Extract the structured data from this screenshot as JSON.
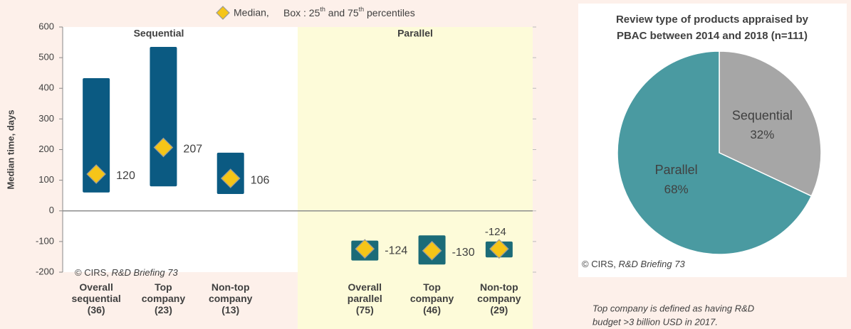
{
  "chart_data": [
    {
      "type": "box",
      "legend": {
        "median": "Median,",
        "box": [
          "Box : 25",
          "th",
          " and 75",
          "th",
          " percentiles"
        ],
        "median_color": "#f5c518"
      },
      "ylabel": "Median time, days",
      "groups": [
        {
          "label": "Sequential",
          "color": "#0b5a82",
          "background": "#ffffff"
        },
        {
          "label": "Parallel",
          "color": "#1b6b78",
          "background": "#fdfbd9"
        }
      ],
      "categories": [
        [
          "Overall",
          "sequential",
          "(36)"
        ],
        [
          "Top",
          "company",
          "(23)"
        ],
        [
          "Non-top",
          "company",
          "(13)"
        ],
        null,
        [
          "Overall",
          "parallel",
          "(75)"
        ],
        [
          "Top",
          "company",
          "(46)"
        ],
        [
          "Non-top",
          "company",
          "(29)"
        ]
      ],
      "q1": [
        60,
        80,
        55,
        null,
        -162,
        -175,
        -152
      ],
      "q3": [
        433,
        535,
        190,
        null,
        -97,
        -80,
        -100
      ],
      "median": [
        120,
        207,
        106,
        null,
        -124,
        -130,
        -124
      ],
      "ylim": [
        -200,
        600
      ],
      "yticks": [
        -200,
        -100,
        0,
        100,
        200,
        300,
        400,
        500,
        600
      ],
      "source": [
        "© CIRS, ",
        "R&D Briefing 73"
      ]
    },
    {
      "type": "pie",
      "title": [
        "Review type of products appraised by",
        "PBAC between 2014 and 2018  (n=111)"
      ],
      "categories": [
        "Sequential",
        "Parallel"
      ],
      "values": [
        32,
        68
      ],
      "value_labels": [
        "32%",
        "68%"
      ],
      "colors": [
        "#a6a6a6",
        "#4a9aa1"
      ],
      "source": [
        "© CIRS, ",
        "R&D Briefing 73"
      ]
    }
  ],
  "footnote": [
    "Top company is defined as having R&D",
    "budget >3 billion USD in 2017."
  ]
}
